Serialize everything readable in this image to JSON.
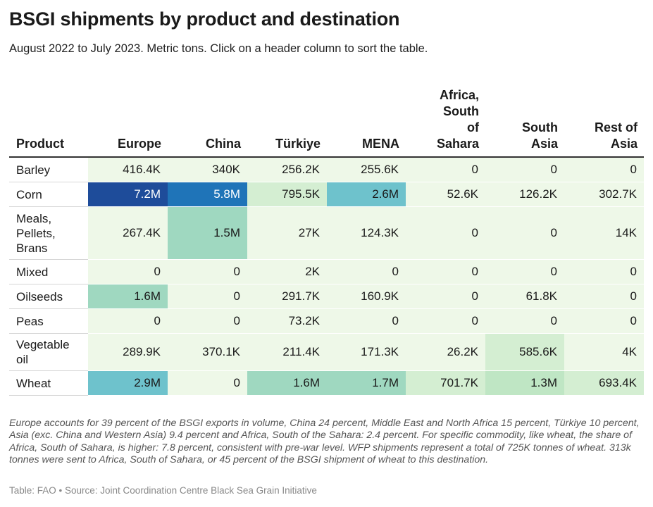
{
  "title": "BSGI shipments by product and destination",
  "subtitle": "August 2022 to July 2023. Metric tons. Click on a header column to sort the table.",
  "chart_data": {
    "type": "table",
    "columns": [
      "Product",
      "Europe",
      "China",
      "Türkiye",
      "MENA",
      "Africa, South of Sahara",
      "South Asia",
      "Rest of Asia"
    ],
    "column_header_lines": [
      [
        "Product"
      ],
      [
        "Europe"
      ],
      [
        "China"
      ],
      [
        "Türkiye"
      ],
      [
        "MENA"
      ],
      [
        "Africa,",
        "South",
        "of",
        "Sahara"
      ],
      [
        "South",
        "Asia"
      ],
      [
        "Rest of",
        "Asia"
      ]
    ],
    "rows": [
      {
        "product": "Barley",
        "product_lines": [
          "Barley"
        ],
        "labels": [
          "416.4K",
          "340K",
          "256.2K",
          "255.6K",
          "0",
          "0",
          "0"
        ],
        "values": [
          416400,
          340000,
          256200,
          255600,
          0,
          0,
          0
        ]
      },
      {
        "product": "Corn",
        "product_lines": [
          "Corn"
        ],
        "labels": [
          "7.2M",
          "5.8M",
          "795.5K",
          "2.6M",
          "52.6K",
          "126.2K",
          "302.7K"
        ],
        "values": [
          7200000,
          5800000,
          795500,
          2600000,
          52600,
          126200,
          302700
        ]
      },
      {
        "product": "Meals, Pellets, Brans",
        "product_lines": [
          "Meals,",
          "Pellets,",
          "Brans"
        ],
        "labels": [
          "267.4K",
          "1.5M",
          "27K",
          "124.3K",
          "0",
          "0",
          "14K"
        ],
        "values": [
          267400,
          1500000,
          27000,
          124300,
          0,
          0,
          14000
        ]
      },
      {
        "product": "Mixed",
        "product_lines": [
          "Mixed"
        ],
        "labels": [
          "0",
          "0",
          "2K",
          "0",
          "0",
          "0",
          "0"
        ],
        "values": [
          0,
          0,
          2000,
          0,
          0,
          0,
          0
        ]
      },
      {
        "product": "Oilseeds",
        "product_lines": [
          "Oilseeds"
        ],
        "labels": [
          "1.6M",
          "0",
          "291.7K",
          "160.9K",
          "0",
          "61.8K",
          "0"
        ],
        "values": [
          1600000,
          0,
          291700,
          160900,
          0,
          61800,
          0
        ]
      },
      {
        "product": "Peas",
        "product_lines": [
          "Peas"
        ],
        "labels": [
          "0",
          "0",
          "73.2K",
          "0",
          "0",
          "0",
          "0"
        ],
        "values": [
          0,
          0,
          73200,
          0,
          0,
          0,
          0
        ]
      },
      {
        "product": "Vegetable oil",
        "product_lines": [
          "Vegetable",
          "oil"
        ],
        "labels": [
          "289.9K",
          "370.1K",
          "211.4K",
          "171.3K",
          "26.2K",
          "585.6K",
          "4K"
        ],
        "values": [
          289900,
          370100,
          211400,
          171300,
          26200,
          585600,
          4000
        ]
      },
      {
        "product": "Wheat",
        "product_lines": [
          "Wheat"
        ],
        "labels": [
          "2.9M",
          "0",
          "1.6M",
          "1.7M",
          "701.7K",
          "1.3M",
          "693.4K"
        ],
        "values": [
          2900000,
          0,
          1600000,
          1700000,
          701700,
          1300000,
          693400
        ]
      }
    ],
    "color_scale": {
      "low": "#eef8e8",
      "mid1": "#bfe6c4",
      "mid2": "#9fd8c0",
      "mid3": "#6ec2cc",
      "high1": "#1f74b8",
      "high2": "#1e4c9a"
    }
  },
  "note": "Europe accounts for 39 percent of the BSGI exports in volume, China 24 percent, Middle East and North Africa 15 percent, Türkiye 10 percent, Asia (exc. China and Western Asia) 9.4 percent and Africa, South of the Sahara: 2.4 percent. For specific commodity, like wheat, the share of Africa, South of Sahara, is higher: 7.8 percent, consistent with pre-war level. WFP shipments represent a total of 725K tonnes of wheat. 313k tonnes were sent to Africa, South of Sahara, or 45 percent of the BSGI shipment of wheat to this destination.",
  "source": "Table: FAO • Source: Joint Coordination Centre Black Sea Grain Initiative"
}
